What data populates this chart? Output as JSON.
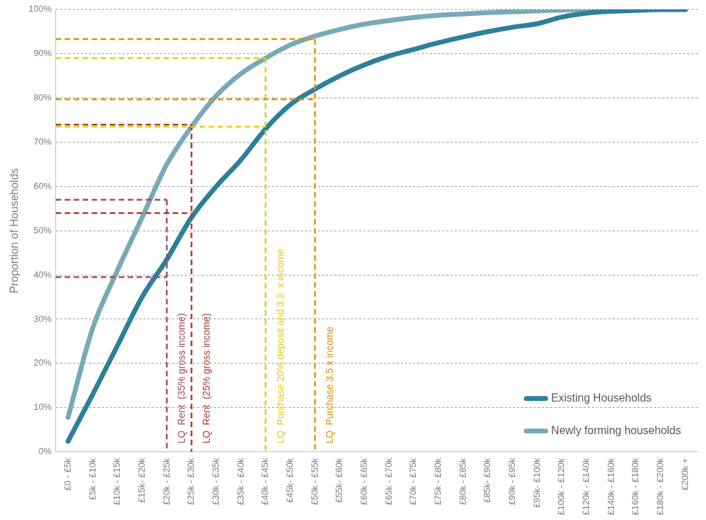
{
  "chart_data": {
    "type": "line",
    "ylabel": "Proportion of Households",
    "categories": [
      "£0 - £5k",
      "£5k - £10k",
      "£10k - £15k",
      "£15k- £20k",
      "£20k - £25k",
      "£25k - £30k",
      "£30k - £35k",
      "£35k - £40k",
      "£40k - £45k",
      "£45k- £50k",
      "£50k - £55k",
      "£55k- £60k",
      "£60k - £65k",
      "£65k - £70k",
      "£70k - £75k",
      "£75k - £80k",
      "£80k - £85k",
      "£85k- £90k",
      "£90k - £95k",
      "£95k- £100k",
      "£100k - £120k",
      "£120k - £140k",
      "£140k - £160k",
      "£160k - £180k",
      "£180k - £200k",
      "£200k +"
    ],
    "series": [
      {
        "name": "Existing Households",
        "color": "#2e7f9b",
        "values": [
          2.4,
          13,
          24,
          35,
          43.5,
          53,
          60,
          66,
          73,
          78.5,
          82,
          85,
          87.5,
          89.5,
          91,
          92.5,
          93.8,
          95,
          96,
          96.8,
          98.3,
          99.2,
          99.6,
          99.8,
          100,
          100
        ]
      },
      {
        "name": "Newly forming households",
        "color": "#77aab6",
        "values": [
          7.8,
          28,
          41,
          53,
          65,
          73.5,
          80.5,
          85.5,
          89,
          92,
          94,
          95.5,
          96.7,
          97.5,
          98.2,
          98.7,
          99,
          99.3,
          99.5,
          99.7,
          99.9,
          100,
          100,
          100,
          100,
          100
        ]
      }
    ],
    "ylim": [
      0,
      100
    ],
    "yticks": [
      {
        "value": 0,
        "label": "0%"
      },
      {
        "value": 10,
        "label": "10%"
      },
      {
        "value": 20,
        "label": "20%"
      },
      {
        "value": 30,
        "label": "30%"
      },
      {
        "value": 40,
        "label": "40%"
      },
      {
        "value": 50,
        "label": "50%"
      },
      {
        "value": 60,
        "label": "60%"
      },
      {
        "value": 70,
        "label": "70%"
      },
      {
        "value": 80,
        "label": "80%"
      },
      {
        "value": 90,
        "label": "90%"
      },
      {
        "value": 100,
        "label": "100%"
      }
    ],
    "ref_lines": [
      {
        "axis": "x",
        "value": "£20k - £25k",
        "label": "LQ  Rent  (35% gross income)",
        "color": "#a5476a",
        "line_style": "dashed"
      },
      {
        "axis": "x",
        "value": "£25k - £30k",
        "label": "LQ  Rent  (25% gross income)",
        "color": "#b03a2e",
        "line_style": "dashed"
      },
      {
        "axis": "x",
        "value": "£40k - £45k",
        "label": "LQ  Purchase 20% deposit and 3.3  x income",
        "color": "#e3cc14",
        "line_style": "dashed"
      },
      {
        "axis": "x",
        "value": "£50k - £55k",
        "label": "LQ  Purchase 3.5 x income",
        "color": "#d99200",
        "line_style": "dashed"
      },
      {
        "axis": "y",
        "value": 57,
        "color": "#a5476a",
        "line_style": "dashed"
      },
      {
        "axis": "y",
        "value": 39.5,
        "color": "#a5476a",
        "line_style": "dashed"
      },
      {
        "axis": "y",
        "value": 74,
        "color": "#b03a2e",
        "line_style": "dashed"
      },
      {
        "axis": "y",
        "value": 54,
        "color": "#b03a2e",
        "line_style": "dashed"
      },
      {
        "axis": "y",
        "value": 89,
        "color": "#e3cc14",
        "line_style": "dashed"
      },
      {
        "axis": "y",
        "value": 73.5,
        "color": "#e3cc14",
        "line_style": "dashed"
      },
      {
        "axis": "y",
        "value": 93.3,
        "color": "#d99200",
        "line_style": "dashed"
      },
      {
        "axis": "y",
        "value": 79.7,
        "color": "#d99200",
        "line_style": "dashed"
      }
    ],
    "grid": "y",
    "legend": "bottom right",
    "marker": "none",
    "line_style": "solid"
  }
}
